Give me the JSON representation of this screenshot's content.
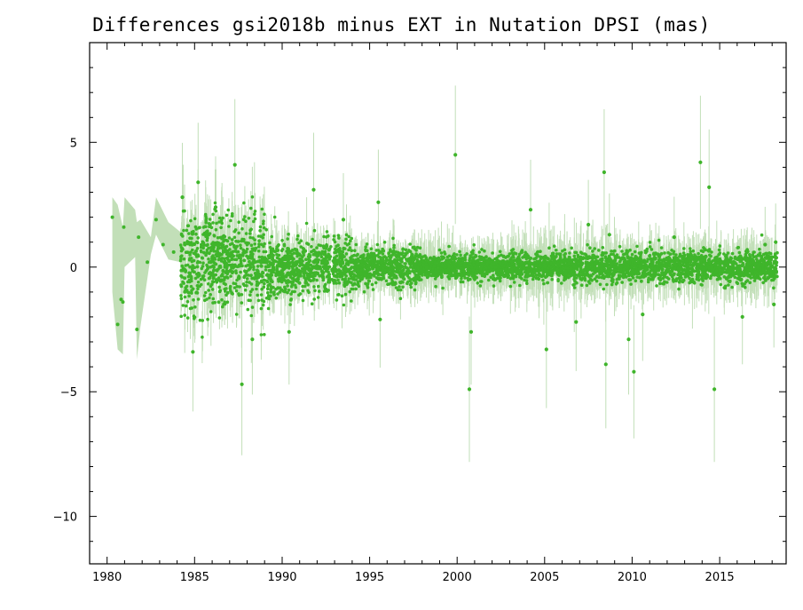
{
  "chart_data": {
    "type": "scatter",
    "title": "Differences gsi2018b minus EXT in Nutation DPSI (mas)",
    "xlabel": "",
    "ylabel": "",
    "xlim": [
      1979.0,
      2018.8
    ],
    "ylim": [
      -11.9,
      9.0
    ],
    "x_ticks": [
      1980,
      1985,
      1990,
      1995,
      2000,
      2005,
      2010,
      2015
    ],
    "y_ticks": [
      5,
      0,
      -5,
      -10
    ],
    "x_tick_labels": [
      "1980",
      "1985",
      "1990",
      "1995",
      "2000",
      "2005",
      "2010",
      "2015"
    ],
    "y_tick_labels": [
      "5",
      "0",
      "−5",
      "−10"
    ],
    "grid": false,
    "legend": "none",
    "point_color": "#3fb52b",
    "band_color": "#c2dfb8",
    "early_band": [
      {
        "x": 1980.3,
        "lo": -1.0,
        "hi": 2.8
      },
      {
        "x": 1980.6,
        "lo": -3.3,
        "hi": 2.5
      },
      {
        "x": 1980.9,
        "lo": -3.5,
        "hi": 1.6
      },
      {
        "x": 1981.0,
        "lo": 0.0,
        "hi": 2.8
      },
      {
        "x": 1981.6,
        "lo": 0.4,
        "hi": 2.3
      },
      {
        "x": 1981.7,
        "lo": -3.7,
        "hi": 1.8
      },
      {
        "x": 1981.9,
        "lo": -2.4,
        "hi": 1.9
      },
      {
        "x": 1982.5,
        "lo": 0.5,
        "hi": 1.2
      },
      {
        "x": 1982.8,
        "lo": 1.3,
        "hi": 2.8
      },
      {
        "x": 1983.5,
        "lo": 0.3,
        "hi": 1.8
      },
      {
        "x": 1984.2,
        "lo": 0.2,
        "hi": 1.4
      }
    ],
    "early_points": [
      [
        1980.3,
        2.0
      ],
      [
        1980.6,
        -2.3
      ],
      [
        1980.8,
        -1.3
      ],
      [
        1980.9,
        -1.4
      ],
      [
        1980.95,
        1.6
      ],
      [
        1981.7,
        -2.5
      ],
      [
        1981.8,
        1.2
      ],
      [
        1982.3,
        0.2
      ],
      [
        1982.8,
        1.9
      ],
      [
        1983.2,
        0.9
      ],
      [
        1983.8,
        0.6
      ]
    ],
    "notable_outliers": [
      [
        1984.3,
        2.8
      ],
      [
        1984.9,
        -3.4
      ],
      [
        1985.2,
        3.4
      ],
      [
        1986.2,
        2.4
      ],
      [
        1987.3,
        4.1
      ],
      [
        1987.7,
        -4.7
      ],
      [
        1988.3,
        -2.9
      ],
      [
        1990.4,
        -2.6
      ],
      [
        1991.8,
        3.1
      ],
      [
        1993.5,
        1.9
      ],
      [
        1995.5,
        2.6
      ],
      [
        1995.6,
        -2.1
      ],
      [
        1999.9,
        4.5
      ],
      [
        2000.7,
        -4.9
      ],
      [
        2000.8,
        -2.6
      ],
      [
        2004.2,
        2.3
      ],
      [
        2005.1,
        -3.3
      ],
      [
        2006.8,
        -2.2
      ],
      [
        2007.5,
        1.7
      ],
      [
        2008.4,
        3.8
      ],
      [
        2008.5,
        -3.9
      ],
      [
        2008.7,
        1.3
      ],
      [
        2009.8,
        -2.9
      ],
      [
        2010.1,
        -4.2
      ],
      [
        2010.6,
        -1.9
      ],
      [
        2012.4,
        1.2
      ],
      [
        2013.9,
        4.2
      ],
      [
        2014.4,
        3.2
      ],
      [
        2014.7,
        -4.9
      ],
      [
        2016.3,
        -2.0
      ],
      [
        2017.6,
        0.9
      ],
      [
        2018.2,
        1.0
      ],
      [
        2018.1,
        -1.5
      ]
    ],
    "series": [
      {
        "period": [
          1984.2,
          1989.0
        ],
        "std": 0.95,
        "err_std": 1.4
      },
      {
        "period": [
          1989.0,
          1994.0
        ],
        "std": 0.55,
        "err_std": 0.9
      },
      {
        "period": [
          1994.0,
          1998.0
        ],
        "std": 0.38,
        "err_std": 0.8
      },
      {
        "period": [
          1998.0,
          2003.0
        ],
        "std": 0.25,
        "err_std": 0.8
      },
      {
        "period": [
          2003.0,
          2010.0
        ],
        "std": 0.3,
        "err_std": 1.0
      },
      {
        "period": [
          2010.0,
          2018.3
        ],
        "std": 0.3,
        "err_std": 0.9
      }
    ],
    "density_per_year": 150
  }
}
